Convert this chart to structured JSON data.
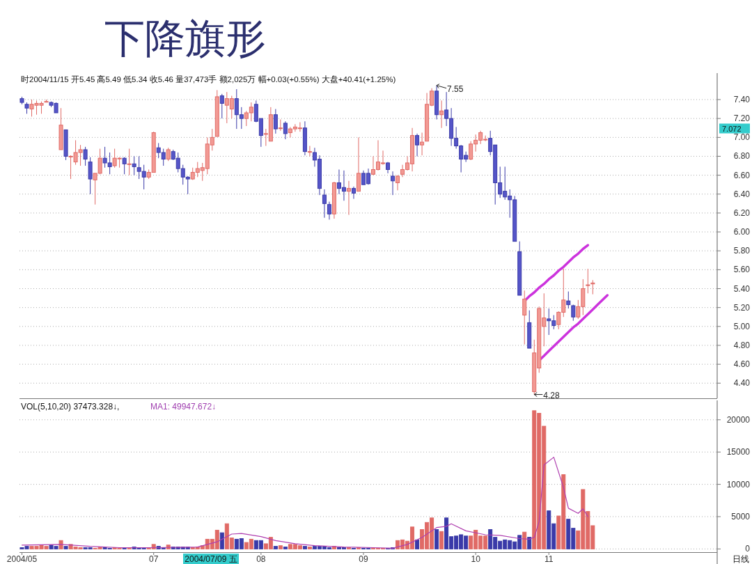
{
  "chart_data": [
    {
      "type": "candlestick",
      "title": "下降旗形",
      "subtitle": "时2004/11/15 开5.45 高5.49 低5.34 收5.46 量37,473手 额2,025万 幅+0.03(+0.55%) 大盘+40.41(+1.25%)",
      "categories": [
        "2004/05",
        null,
        null,
        null,
        null,
        null,
        null,
        null,
        null,
        null,
        null,
        null,
        null,
        null,
        null,
        null,
        null,
        null,
        null,
        null,
        null,
        null,
        null,
        null,
        null,
        null,
        null,
        "07",
        null,
        null,
        null,
        null,
        null,
        null,
        null,
        null,
        null,
        null,
        null,
        null,
        null,
        null,
        null,
        null,
        null,
        null,
        null,
        null,
        null,
        "08",
        null,
        null,
        null,
        null,
        null,
        null,
        null,
        null,
        null,
        null,
        null,
        null,
        null,
        null,
        null,
        null,
        null,
        null,
        null,
        null,
        "09",
        null,
        null,
        null,
        null,
        null,
        null,
        null,
        null,
        null,
        null,
        null,
        null,
        null,
        null,
        null,
        null,
        null,
        null,
        null,
        null,
        null,
        null,
        "10",
        null,
        null,
        null,
        null,
        null,
        null,
        null,
        null,
        null,
        null,
        null,
        null,
        null,
        null,
        "11",
        null,
        null,
        null,
        null,
        null,
        null,
        null,
        null,
        null,
        null,
        null,
        null,
        null,
        null,
        null,
        null,
        null,
        null,
        null,
        null,
        null,
        null,
        null,
        null,
        null,
        null,
        null,
        null,
        null,
        null,
        null,
        null,
        null,
        null
      ],
      "ohlc": [
        [
          7.41,
          7.43,
          7.35,
          7.37
        ],
        [
          7.35,
          7.37,
          7.25,
          7.31
        ],
        [
          7.3,
          7.4,
          7.22,
          7.35
        ],
        [
          7.34,
          7.39,
          7.24,
          7.36
        ],
        [
          7.34,
          7.38,
          7.25,
          7.36
        ],
        [
          7.38,
          7.4,
          7.37,
          7.38
        ],
        [
          7.37,
          7.38,
          7.32,
          7.34
        ],
        [
          7.36,
          7.37,
          7.26,
          7.26
        ],
        [
          6.87,
          7.31,
          6.87,
          7.13
        ],
        [
          7.08,
          7.08,
          6.76,
          6.8
        ],
        [
          6.8,
          6.81,
          6.56,
          6.8
        ],
        [
          6.74,
          6.97,
          6.71,
          6.84
        ],
        [
          6.84,
          6.92,
          6.7,
          6.87
        ],
        [
          6.87,
          6.9,
          6.7,
          6.77
        ],
        [
          6.74,
          6.79,
          6.4,
          6.56
        ],
        [
          6.55,
          6.62,
          6.29,
          6.62
        ],
        [
          6.62,
          6.88,
          6.61,
          6.78
        ],
        [
          6.78,
          6.9,
          6.68,
          6.73
        ],
        [
          6.73,
          6.84,
          6.61,
          6.69
        ],
        [
          6.7,
          6.88,
          6.68,
          6.78
        ],
        [
          6.78,
          6.79,
          6.68,
          6.78
        ],
        [
          6.78,
          6.79,
          6.61,
          6.72
        ],
        [
          6.72,
          6.88,
          6.6,
          6.72
        ],
        [
          6.72,
          6.8,
          6.6,
          6.69
        ],
        [
          6.68,
          6.8,
          6.56,
          6.64
        ],
        [
          6.64,
          6.71,
          6.45,
          6.58
        ],
        [
          6.58,
          6.66,
          6.56,
          6.63
        ],
        [
          6.63,
          7.06,
          6.63,
          7.05
        ],
        [
          6.89,
          6.94,
          6.78,
          6.84
        ],
        [
          6.84,
          6.88,
          6.7,
          6.77
        ],
        [
          6.77,
          6.89,
          6.75,
          6.87
        ],
        [
          6.85,
          6.87,
          6.76,
          6.77
        ],
        [
          6.78,
          6.84,
          6.63,
          6.67
        ],
        [
          6.67,
          6.71,
          6.5,
          6.58
        ],
        [
          6.58,
          6.59,
          6.4,
          6.56
        ],
        [
          6.56,
          6.68,
          6.55,
          6.63
        ],
        [
          6.63,
          6.74,
          6.58,
          6.67
        ],
        [
          6.65,
          6.73,
          6.54,
          6.68
        ],
        [
          6.67,
          7.0,
          6.61,
          6.93
        ],
        [
          6.92,
          7.09,
          6.86,
          7.0
        ],
        [
          7.01,
          7.5,
          7.01,
          7.43
        ],
        [
          7.44,
          7.46,
          7.2,
          7.36
        ],
        [
          7.34,
          7.48,
          7.15,
          7.41
        ],
        [
          7.3,
          7.44,
          7.2,
          7.41
        ],
        [
          7.41,
          7.51,
          7.09,
          7.24
        ],
        [
          7.24,
          7.32,
          7.09,
          7.2
        ],
        [
          7.2,
          7.28,
          7.12,
          7.26
        ],
        [
          7.26,
          7.37,
          7.17,
          7.32
        ],
        [
          7.35,
          7.39,
          7.16,
          7.17
        ],
        [
          7.2,
          7.2,
          6.9,
          7.02
        ],
        [
          7.04,
          7.09,
          6.91,
          7.04
        ],
        [
          6.96,
          7.32,
          6.96,
          7.24
        ],
        [
          7.24,
          7.3,
          7.04,
          7.09
        ],
        [
          7.1,
          7.19,
          7.07,
          7.1
        ],
        [
          7.15,
          7.17,
          6.98,
          7.04
        ],
        [
          7.05,
          7.11,
          7.0,
          7.09
        ],
        [
          7.09,
          7.14,
          7.06,
          7.11
        ],
        [
          7.1,
          7.16,
          7.06,
          7.1
        ],
        [
          7.1,
          7.17,
          6.81,
          6.85
        ],
        [
          6.85,
          6.91,
          6.8,
          6.85
        ],
        [
          6.84,
          6.89,
          6.69,
          6.76
        ],
        [
          6.77,
          6.81,
          6.39,
          6.46
        ],
        [
          6.39,
          6.45,
          6.15,
          6.3
        ],
        [
          6.29,
          6.32,
          6.13,
          6.19
        ],
        [
          6.19,
          6.53,
          6.14,
          6.52
        ],
        [
          6.52,
          6.66,
          6.4,
          6.46
        ],
        [
          6.47,
          6.65,
          6.33,
          6.43
        ],
        [
          6.43,
          6.54,
          6.18,
          6.46
        ],
        [
          6.46,
          6.48,
          6.35,
          6.41
        ],
        [
          6.43,
          7.0,
          6.43,
          6.62
        ],
        [
          6.62,
          6.65,
          6.5,
          6.5
        ],
        [
          6.62,
          6.67,
          6.5,
          6.51
        ],
        [
          6.61,
          6.8,
          6.6,
          6.66
        ],
        [
          6.66,
          6.97,
          6.65,
          6.74
        ],
        [
          6.73,
          6.86,
          6.71,
          6.73
        ],
        [
          6.73,
          6.74,
          6.62,
          6.66
        ],
        [
          6.59,
          6.64,
          6.39,
          6.54
        ],
        [
          6.52,
          6.6,
          6.44,
          6.59
        ],
        [
          6.61,
          6.71,
          6.58,
          6.66
        ],
        [
          6.66,
          6.8,
          6.65,
          6.73
        ],
        [
          6.72,
          7.1,
          6.64,
          7.02
        ],
        [
          7.02,
          7.04,
          6.8,
          6.92
        ],
        [
          6.92,
          7.05,
          6.81,
          6.95
        ],
        [
          6.96,
          7.47,
          6.96,
          7.35
        ],
        [
          7.34,
          7.52,
          7.33,
          7.49
        ],
        [
          7.49,
          7.55,
          7.19,
          7.24
        ],
        [
          7.24,
          7.39,
          7.1,
          7.28
        ],
        [
          7.29,
          7.48,
          7.12,
          7.2
        ],
        [
          7.2,
          7.31,
          6.91,
          6.99
        ],
        [
          6.99,
          7.11,
          6.88,
          6.91
        ],
        [
          6.91,
          6.92,
          6.63,
          6.77
        ],
        [
          6.81,
          6.85,
          6.74,
          6.77
        ],
        [
          6.77,
          6.96,
          6.76,
          6.93
        ],
        [
          6.93,
          7.03,
          6.85,
          6.97
        ],
        [
          6.97,
          7.07,
          6.93,
          7.05
        ],
        [
          6.98,
          7.02,
          6.96,
          6.98
        ],
        [
          6.99,
          7.07,
          6.81,
          6.85
        ],
        [
          6.92,
          6.92,
          6.29,
          6.52
        ],
        [
          6.52,
          6.69,
          6.36,
          6.4
        ],
        [
          6.43,
          6.69,
          6.34,
          6.37
        ],
        [
          6.38,
          6.45,
          6.15,
          6.34
        ],
        [
          6.34,
          6.38,
          5.9,
          5.9
        ],
        [
          5.79,
          5.9,
          5.33,
          5.33
        ],
        [
          5.12,
          5.38,
          4.81,
          5.29
        ],
        [
          5.04,
          5.17,
          4.77,
          4.77
        ],
        [
          4.31,
          4.86,
          4.28,
          4.72
        ],
        [
          4.56,
          5.21,
          4.51,
          5.19
        ],
        [
          5.0,
          5.35,
          4.79,
          5.09
        ],
        [
          5.08,
          5.19,
          4.91,
          5.06
        ],
        [
          5.06,
          5.12,
          4.97,
          5.01
        ],
        [
          5.02,
          5.16,
          4.97,
          5.15
        ],
        [
          5.15,
          5.61,
          5.1,
          5.28
        ],
        [
          5.27,
          5.37,
          5.19,
          5.23
        ],
        [
          5.22,
          5.23,
          5.06,
          5.1
        ],
        [
          5.1,
          5.28,
          5.08,
          5.21
        ],
        [
          5.21,
          5.5,
          5.12,
          5.4
        ],
        [
          5.44,
          5.61,
          5.35,
          5.44
        ],
        [
          5.45,
          5.49,
          5.34,
          5.46
        ],
        null,
        null,
        null,
        null,
        null,
        null,
        null,
        null,
        null,
        null,
        null,
        null,
        null,
        null,
        null,
        null,
        null,
        null,
        null,
        null,
        null,
        null,
        null,
        null,
        null
      ],
      "series": [
        {
          "type": "line",
          "color": "#cc33dd",
          "values": [
            null,
            null,
            null,
            null,
            null,
            null,
            null,
            null,
            null,
            null,
            null,
            null,
            null,
            null,
            null,
            null,
            null,
            null,
            null,
            null,
            null,
            null,
            null,
            null,
            null,
            null,
            null,
            null,
            null,
            null,
            null,
            null,
            null,
            null,
            null,
            null,
            null,
            null,
            null,
            null,
            null,
            null,
            null,
            null,
            null,
            null,
            null,
            null,
            null,
            null,
            null,
            null,
            null,
            null,
            null,
            null,
            null,
            null,
            null,
            null,
            null,
            null,
            null,
            null,
            null,
            null,
            null,
            null,
            null,
            null,
            null,
            null,
            null,
            null,
            null,
            null,
            null,
            null,
            null,
            null,
            null,
            null,
            null,
            null,
            null,
            null,
            null,
            null,
            null,
            null,
            null,
            null,
            null,
            null,
            null,
            null,
            null,
            null,
            null,
            null,
            null,
            null,
            null,
            5.27,
            5.32,
            5.36,
            5.41,
            5.45,
            5.5,
            5.54,
            5.59,
            5.63,
            5.68,
            5.73,
            5.77,
            5.82,
            5.86,
            null,
            null,
            null,
            null,
            null,
            null,
            null,
            null,
            null,
            null,
            null,
            null,
            null,
            null,
            null,
            null,
            null,
            null,
            null,
            null,
            null,
            null,
            null,
            null,
            null,
            null
          ]
        },
        {
          "type": "line",
          "color": "#cc33dd",
          "values": [
            null,
            null,
            null,
            null,
            null,
            null,
            null,
            null,
            null,
            null,
            null,
            null,
            null,
            null,
            null,
            null,
            null,
            null,
            null,
            null,
            null,
            null,
            null,
            null,
            null,
            null,
            null,
            null,
            null,
            null,
            null,
            null,
            null,
            null,
            null,
            null,
            null,
            null,
            null,
            null,
            null,
            null,
            null,
            null,
            null,
            null,
            null,
            null,
            null,
            null,
            null,
            null,
            null,
            null,
            null,
            null,
            null,
            null,
            null,
            null,
            null,
            null,
            null,
            null,
            null,
            null,
            null,
            null,
            null,
            null,
            null,
            null,
            null,
            null,
            null,
            null,
            null,
            null,
            null,
            null,
            null,
            null,
            null,
            null,
            null,
            null,
            null,
            null,
            null,
            null,
            null,
            null,
            null,
            null,
            null,
            null,
            null,
            null,
            null,
            null,
            null,
            null,
            null,
            null,
            null,
            null,
            4.64,
            4.69,
            4.74,
            4.79,
            4.84,
            4.89,
            4.94,
            4.99,
            5.03,
            5.08,
            5.13,
            5.18,
            5.23,
            5.28,
            5.33,
            null,
            null,
            null,
            null,
            null,
            null,
            null,
            null,
            null,
            null,
            null,
            null,
            null,
            null,
            null,
            null,
            null,
            null,
            null,
            null,
            null,
            null
          ]
        }
      ],
      "ylim": [
        4.24,
        7.68
      ],
      "yticks": [
        {
          "value": 7.4,
          "label": "7.40"
        },
        {
          "value": 7.2,
          "label": "7.20"
        },
        {
          "value": 7.0,
          "label": "7.00"
        },
        {
          "value": 6.8,
          "label": "6.80"
        },
        {
          "value": 6.6,
          "label": "6.60"
        },
        {
          "value": 6.4,
          "label": "6.40"
        },
        {
          "value": 6.2,
          "label": "6.20"
        },
        {
          "value": 6.0,
          "label": "6.00"
        },
        {
          "value": 5.8,
          "label": "5.80"
        },
        {
          "value": 5.6,
          "label": "5.60"
        },
        {
          "value": 5.4,
          "label": "5.40"
        },
        {
          "value": 5.2,
          "label": "5.20"
        },
        {
          "value": 5.0,
          "label": "5.00"
        },
        {
          "value": 4.8,
          "label": "4.80"
        },
        {
          "value": 4.6,
          "label": "4.60"
        },
        {
          "value": 4.4,
          "label": "4.40"
        }
      ],
      "grid": "y",
      "tick_labels": "y",
      "annotations": [
        "7.55",
        "4.28",
        "7.072"
      ]
    },
    {
      "type": "bar",
      "categories": [
        "2004/05",
        null,
        null,
        null,
        null,
        null,
        null,
        null,
        null,
        null,
        null,
        null,
        null,
        null,
        null,
        null,
        null,
        null,
        null,
        null,
        null,
        null,
        null,
        null,
        null,
        null,
        null,
        "07",
        null,
        null,
        null,
        null,
        null,
        null,
        null,
        null,
        null,
        null,
        null,
        null,
        null,
        null,
        null,
        null,
        null,
        null,
        null,
        null,
        null,
        "08",
        null,
        null,
        null,
        null,
        null,
        null,
        null,
        null,
        null,
        null,
        null,
        null,
        null,
        null,
        null,
        null,
        null,
        null,
        null,
        null,
        "09",
        null,
        null,
        null,
        null,
        null,
        null,
        null,
        null,
        null,
        null,
        null,
        null,
        null,
        null,
        null,
        null,
        null,
        null,
        null,
        null,
        null,
        null,
        "10",
        null,
        null,
        null,
        null,
        null,
        null,
        null,
        null,
        null,
        null,
        null,
        null,
        null,
        null,
        "11",
        null,
        null,
        null,
        null,
        null,
        null,
        null,
        null,
        null,
        null,
        null,
        null,
        null,
        null,
        null,
        null,
        null,
        null,
        null,
        null,
        null,
        null,
        null,
        null,
        null,
        null,
        null,
        null,
        null,
        null,
        null,
        null,
        null,
        null
      ],
      "series": [
        {
          "type": "bar",
          "colors": [
            "#3a3aa8",
            "#3a3aa8",
            "#e06a66",
            "#e06a66",
            "#e06a66",
            "#e06a66",
            "#3a3aa8",
            "#3a3aa8",
            "#e06a66",
            "#3a3aa8",
            "#e06a66",
            "#e06a66",
            "#e06a66",
            "#3a3aa8",
            "#3a3aa8",
            "#e06a66",
            "#e06a66",
            "#3a3aa8",
            "#3a3aa8",
            "#e06a66",
            "#e06a66",
            "#3a3aa8",
            "#e06a66",
            "#3a3aa8",
            "#3a3aa8",
            "#3a3aa8",
            "#e06a66",
            "#e06a66",
            "#3a3aa8",
            "#3a3aa8",
            "#e06a66",
            "#3a3aa8",
            "#3a3aa8",
            "#3a3aa8",
            "#3a3aa8",
            "#e06a66",
            "#e06a66",
            "#e06a66",
            "#e06a66",
            "#e06a66",
            "#e06a66",
            "#3a3aa8",
            "#e06a66",
            "#e06a66",
            "#3a3aa8",
            "#3a3aa8",
            "#e06a66",
            "#e06a66",
            "#3a3aa8",
            "#3a3aa8",
            "#e06a66",
            "#e06a66",
            "#3a3aa8",
            "#e06a66",
            "#3a3aa8",
            "#e06a66",
            "#e06a66",
            "#e06a66",
            "#3a3aa8",
            "#e06a66",
            "#3a3aa8",
            "#3a3aa8",
            "#3a3aa8",
            "#3a3aa8",
            "#e06a66",
            "#3a3aa8",
            "#3a3aa8",
            "#e06a66",
            "#3a3aa8",
            "#e06a66",
            "#3a3aa8",
            "#3a3aa8",
            "#e06a66",
            "#e06a66",
            "#e06a66",
            "#3a3aa8",
            "#3a3aa8",
            "#e06a66",
            "#e06a66",
            "#e06a66",
            "#e06a66",
            "#3a3aa8",
            "#e06a66",
            "#e06a66",
            "#e06a66",
            "#3a3aa8",
            "#e06a66",
            "#3a3aa8",
            "#3a3aa8",
            "#3a3aa8",
            "#3a3aa8",
            "#3a3aa8",
            "#e06a66",
            "#e06a66",
            "#e06a66",
            "#e06a66",
            "#3a3aa8",
            "#3a3aa8",
            "#3a3aa8",
            "#3a3aa8",
            "#3a3aa8",
            "#3a3aa8",
            "#3a3aa8",
            "#e06a66",
            "#3a3aa8",
            "#e06a66",
            "#e06a66",
            "#e06a66",
            "#3a3aa8",
            "#3a3aa8",
            "#e06a66",
            "#e06a66",
            "#3a3aa8",
            "#3a3aa8",
            "#e06a66",
            "#e06a66",
            "#e06a66",
            "#e06a66",
            null,
            null,
            null,
            null,
            null,
            null,
            null,
            null,
            null,
            null,
            null,
            null,
            null,
            null,
            null,
            null,
            null,
            null,
            null,
            null,
            null,
            null,
            null,
            null,
            null
          ],
          "values": [
            200,
            400,
            400,
            400,
            600,
            400,
            600,
            400,
            1300,
            400,
            700,
            300,
            200,
            200,
            200,
            100,
            300,
            200,
            100,
            200,
            100,
            100,
            100,
            300,
            100,
            100,
            100,
            700,
            400,
            200,
            600,
            300,
            300,
            300,
            300,
            200,
            300,
            500,
            1500,
            1500,
            2900,
            2500,
            3900,
            1700,
            1500,
            1600,
            1000,
            1500,
            1300,
            1300,
            800,
            1800,
            400,
            500,
            300,
            700,
            700,
            500,
            400,
            300,
            400,
            400,
            400,
            200,
            400,
            200,
            200,
            200,
            100,
            200,
            100,
            100,
            100,
            100,
            100,
            100,
            200,
            1300,
            1400,
            1200,
            3400,
            1400,
            3000,
            4100,
            4800,
            3000,
            2700,
            4800,
            1900,
            2000,
            2200,
            2000,
            2000,
            2900,
            2000,
            2000,
            3000,
            1800,
            1200,
            1400,
            1300,
            1100,
            2100,
            2600,
            1800,
            21400,
            21000,
            19000,
            5900,
            3900,
            5100,
            11500,
            4600,
            3200,
            2800,
            9200,
            5800,
            3600,
            null,
            null,
            null,
            null,
            null,
            null,
            null,
            null,
            null,
            null,
            null,
            null,
            null,
            null,
            null,
            null,
            null,
            null,
            null,
            null,
            null,
            null,
            null,
            null,
            null
          ]
        },
        {
          "type": "line",
          "color": "#b040b0",
          "values": [
            600,
            null,
            null,
            null,
            null,
            null,
            null,
            null,
            700,
            null,
            null,
            null,
            null,
            null,
            400,
            null,
            null,
            null,
            null,
            null,
            200,
            null,
            null,
            null,
            null,
            null,
            null,
            200,
            null,
            null,
            null,
            null,
            null,
            null,
            null,
            null,
            300,
            null,
            null,
            null,
            1100,
            null,
            null,
            2300,
            null,
            2400,
            null,
            null,
            null,
            1900,
            null,
            null,
            1300,
            null,
            null,
            null,
            800,
            null,
            null,
            null,
            500,
            null,
            null,
            null,
            null,
            null,
            300,
            null,
            null,
            null,
            null,
            null,
            200,
            null,
            null,
            null,
            100,
            null,
            null,
            700,
            null,
            null,
            1800,
            null,
            null,
            3300,
            null,
            3500,
            3900,
            null,
            null,
            2800,
            null,
            null,
            null,
            2200,
            null,
            null,
            2100,
            null,
            null,
            null,
            1600,
            null,
            1500,
            1800,
            4200,
            13000,
            null,
            14200,
            null,
            9500,
            6300,
            null,
            5500,
            6200,
            5000,
            null,
            null,
            null,
            null,
            null,
            null,
            null,
            null,
            null,
            null,
            null,
            null,
            null,
            null,
            null,
            null,
            null,
            null,
            null,
            null,
            null,
            null,
            null,
            null,
            null,
            null
          ]
        }
      ],
      "ylim": [
        -500,
        23000
      ],
      "yticks": [
        0,
        5000,
        10000,
        15000,
        20000
      ],
      "grid": "y",
      "annotations": [
        "VOL(5,10,20)  37473.328↓,",
        "MA1: 49947.672↓",
        "2004/07/09 五",
        "日线"
      ]
    }
  ]
}
